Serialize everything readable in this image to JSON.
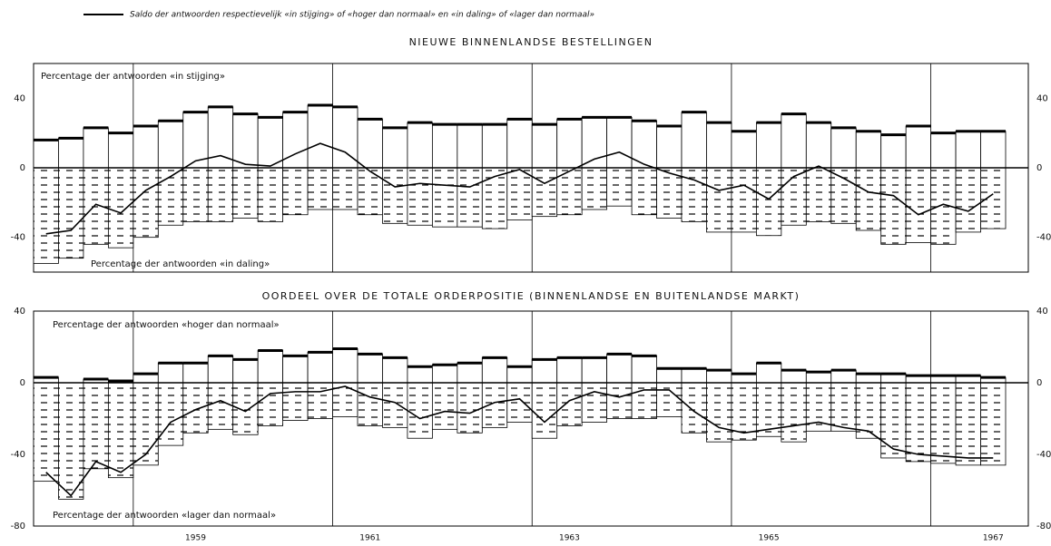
{
  "legend": {
    "label": "Saldo der antwoorden respectievelijk «in stijging» of «hoger dan normaal» en «in daling» of «lager dan normaal»"
  },
  "chart_data": [
    {
      "type": "bar",
      "title": "NIEUWE BINNENLANDSE BESTELLINGEN",
      "categories": [
        null,
        null,
        null,
        null,
        null,
        null,
        "1959",
        null,
        null,
        null,
        null,
        null,
        null,
        "1961",
        null,
        null,
        null,
        null,
        null,
        null,
        null,
        "1963",
        null,
        null,
        null,
        null,
        null,
        null,
        null,
        "1965",
        null,
        null,
        null,
        null,
        null,
        null,
        null,
        null,
        "1967"
      ],
      "ylim": [
        -60,
        60
      ],
      "yticks": [
        40,
        0,
        -40
      ],
      "series": [
        {
          "name": "Percentage der antwoorden «in stijging»",
          "color": "#ffffff",
          "values": [
            16,
            17,
            23,
            20,
            24,
            27,
            32,
            35,
            31,
            29,
            32,
            36,
            35,
            28,
            23,
            26,
            25,
            25,
            25,
            28,
            25,
            28,
            29,
            29,
            27,
            24,
            32,
            26,
            21,
            26,
            31,
            26,
            23,
            21,
            19,
            24,
            20,
            21,
            21
          ]
        },
        {
          "name": "Percentage der antwoorden «in daling»",
          "color": "#ffffff",
          "values": [
            -55,
            -52,
            -44,
            -46,
            -40,
            -33,
            -31,
            -31,
            -29,
            -31,
            -27,
            -24,
            -24,
            -27,
            -32,
            -33,
            -34,
            -34,
            -35,
            -30,
            -28,
            -27,
            -24,
            -22,
            -27,
            -29,
            -31,
            -37,
            -37,
            -39,
            -33,
            -31,
            -32,
            -36,
            -44,
            -43,
            -44,
            -37,
            -35
          ]
        },
        {
          "color": "#000000",
          "values": [
            -38,
            -36,
            -21,
            -26,
            -13,
            -5,
            4,
            7,
            2,
            1,
            8,
            14,
            9,
            -2,
            -11,
            -9,
            -10,
            -11,
            -5,
            -1,
            -9,
            -2,
            5,
            9,
            2,
            -3,
            -7,
            -13,
            -10,
            -18,
            -5,
            1,
            -6,
            -14,
            -16,
            -27,
            -21,
            -25,
            -15
          ]
        }
      ]
    },
    {
      "type": "bar",
      "title": "OORDEEL OVER DE TOTALE ORDERPOSITIE (BINNENLANDSE EN BUITENLANDSE MARKT)",
      "categories": [
        null,
        null,
        null,
        null,
        null,
        null,
        "1959",
        null,
        null,
        null,
        null,
        null,
        null,
        "1961",
        null,
        null,
        null,
        null,
        null,
        null,
        null,
        "1963",
        null,
        null,
        null,
        null,
        null,
        null,
        null,
        "1965",
        null,
        null,
        null,
        null,
        null,
        null,
        null,
        null,
        "1967"
      ],
      "ylim": [
        -80,
        40
      ],
      "yticks": [
        40,
        0,
        -40,
        -80
      ],
      "series": [
        {
          "name": "Percentage der antwoorden «hoger dan normaal»",
          "color": "#ffffff",
          "values": [
            3,
            -1,
            2,
            1,
            5,
            11,
            11,
            15,
            13,
            18,
            15,
            17,
            19,
            16,
            14,
            9,
            10,
            11,
            14,
            9,
            13,
            14,
            14,
            16,
            15,
            8,
            8,
            7,
            5,
            11,
            7,
            6,
            7,
            5,
            5,
            4,
            4,
            4,
            3
          ]
        },
        {
          "name": "Percentage der antwoorden «lager dan normaal»",
          "color": "#ffffff",
          "values": [
            -55,
            -65,
            -48,
            -53,
            -46,
            -35,
            -28,
            -26,
            -29,
            -24,
            -21,
            -20,
            -19,
            -24,
            -25,
            -31,
            -26,
            -28,
            -25,
            -22,
            -31,
            -24,
            -22,
            -20,
            -20,
            -19,
            -28,
            -33,
            -32,
            -30,
            -33,
            -27,
            -27,
            -31,
            -42,
            -44,
            -45,
            -46,
            -46
          ]
        },
        {
          "color": "#000000",
          "values": [
            -50,
            -63,
            -44,
            -50,
            -40,
            -22,
            -15,
            -10,
            -16,
            -6,
            -5,
            -5,
            -2,
            -8,
            -11,
            -20,
            -16,
            -17,
            -11,
            -9,
            -22,
            -10,
            -5,
            -8,
            -4,
            -4,
            -16,
            -25,
            -28,
            -26,
            -24,
            -22,
            -25,
            -27,
            -37,
            -40,
            -41,
            -42,
            -42
          ]
        }
      ]
    }
  ]
}
